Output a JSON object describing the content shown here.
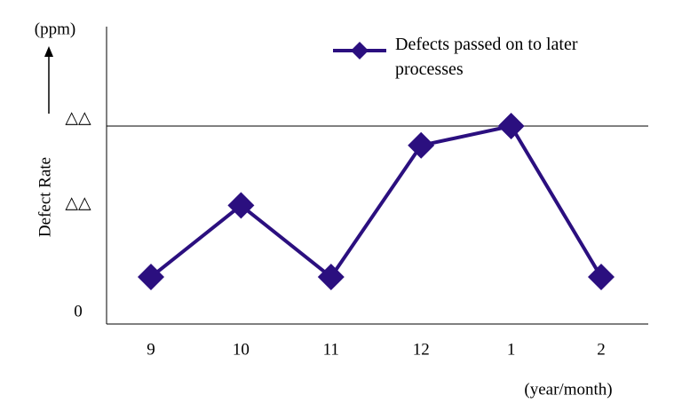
{
  "chart_data": {
    "type": "line",
    "y_label": "Defect Rate",
    "y_unit": "(ppm)",
    "x_label": "(year/month)",
    "categories": [
      "9",
      "10",
      "11",
      "12",
      "1",
      "2"
    ],
    "series": [
      {
        "name": "Defects passed on to later processes",
        "color": "#2b0f7f",
        "values": [
          22,
          59,
          22,
          90,
          100,
          22
        ]
      }
    ],
    "ylim": [
      0,
      150
    ],
    "yticks": [
      0,
      {
        "value": 56,
        "label": "△△"
      },
      {
        "value": 100,
        "label": "△△"
      }
    ],
    "reference_line": 100,
    "legend": "top-right"
  }
}
